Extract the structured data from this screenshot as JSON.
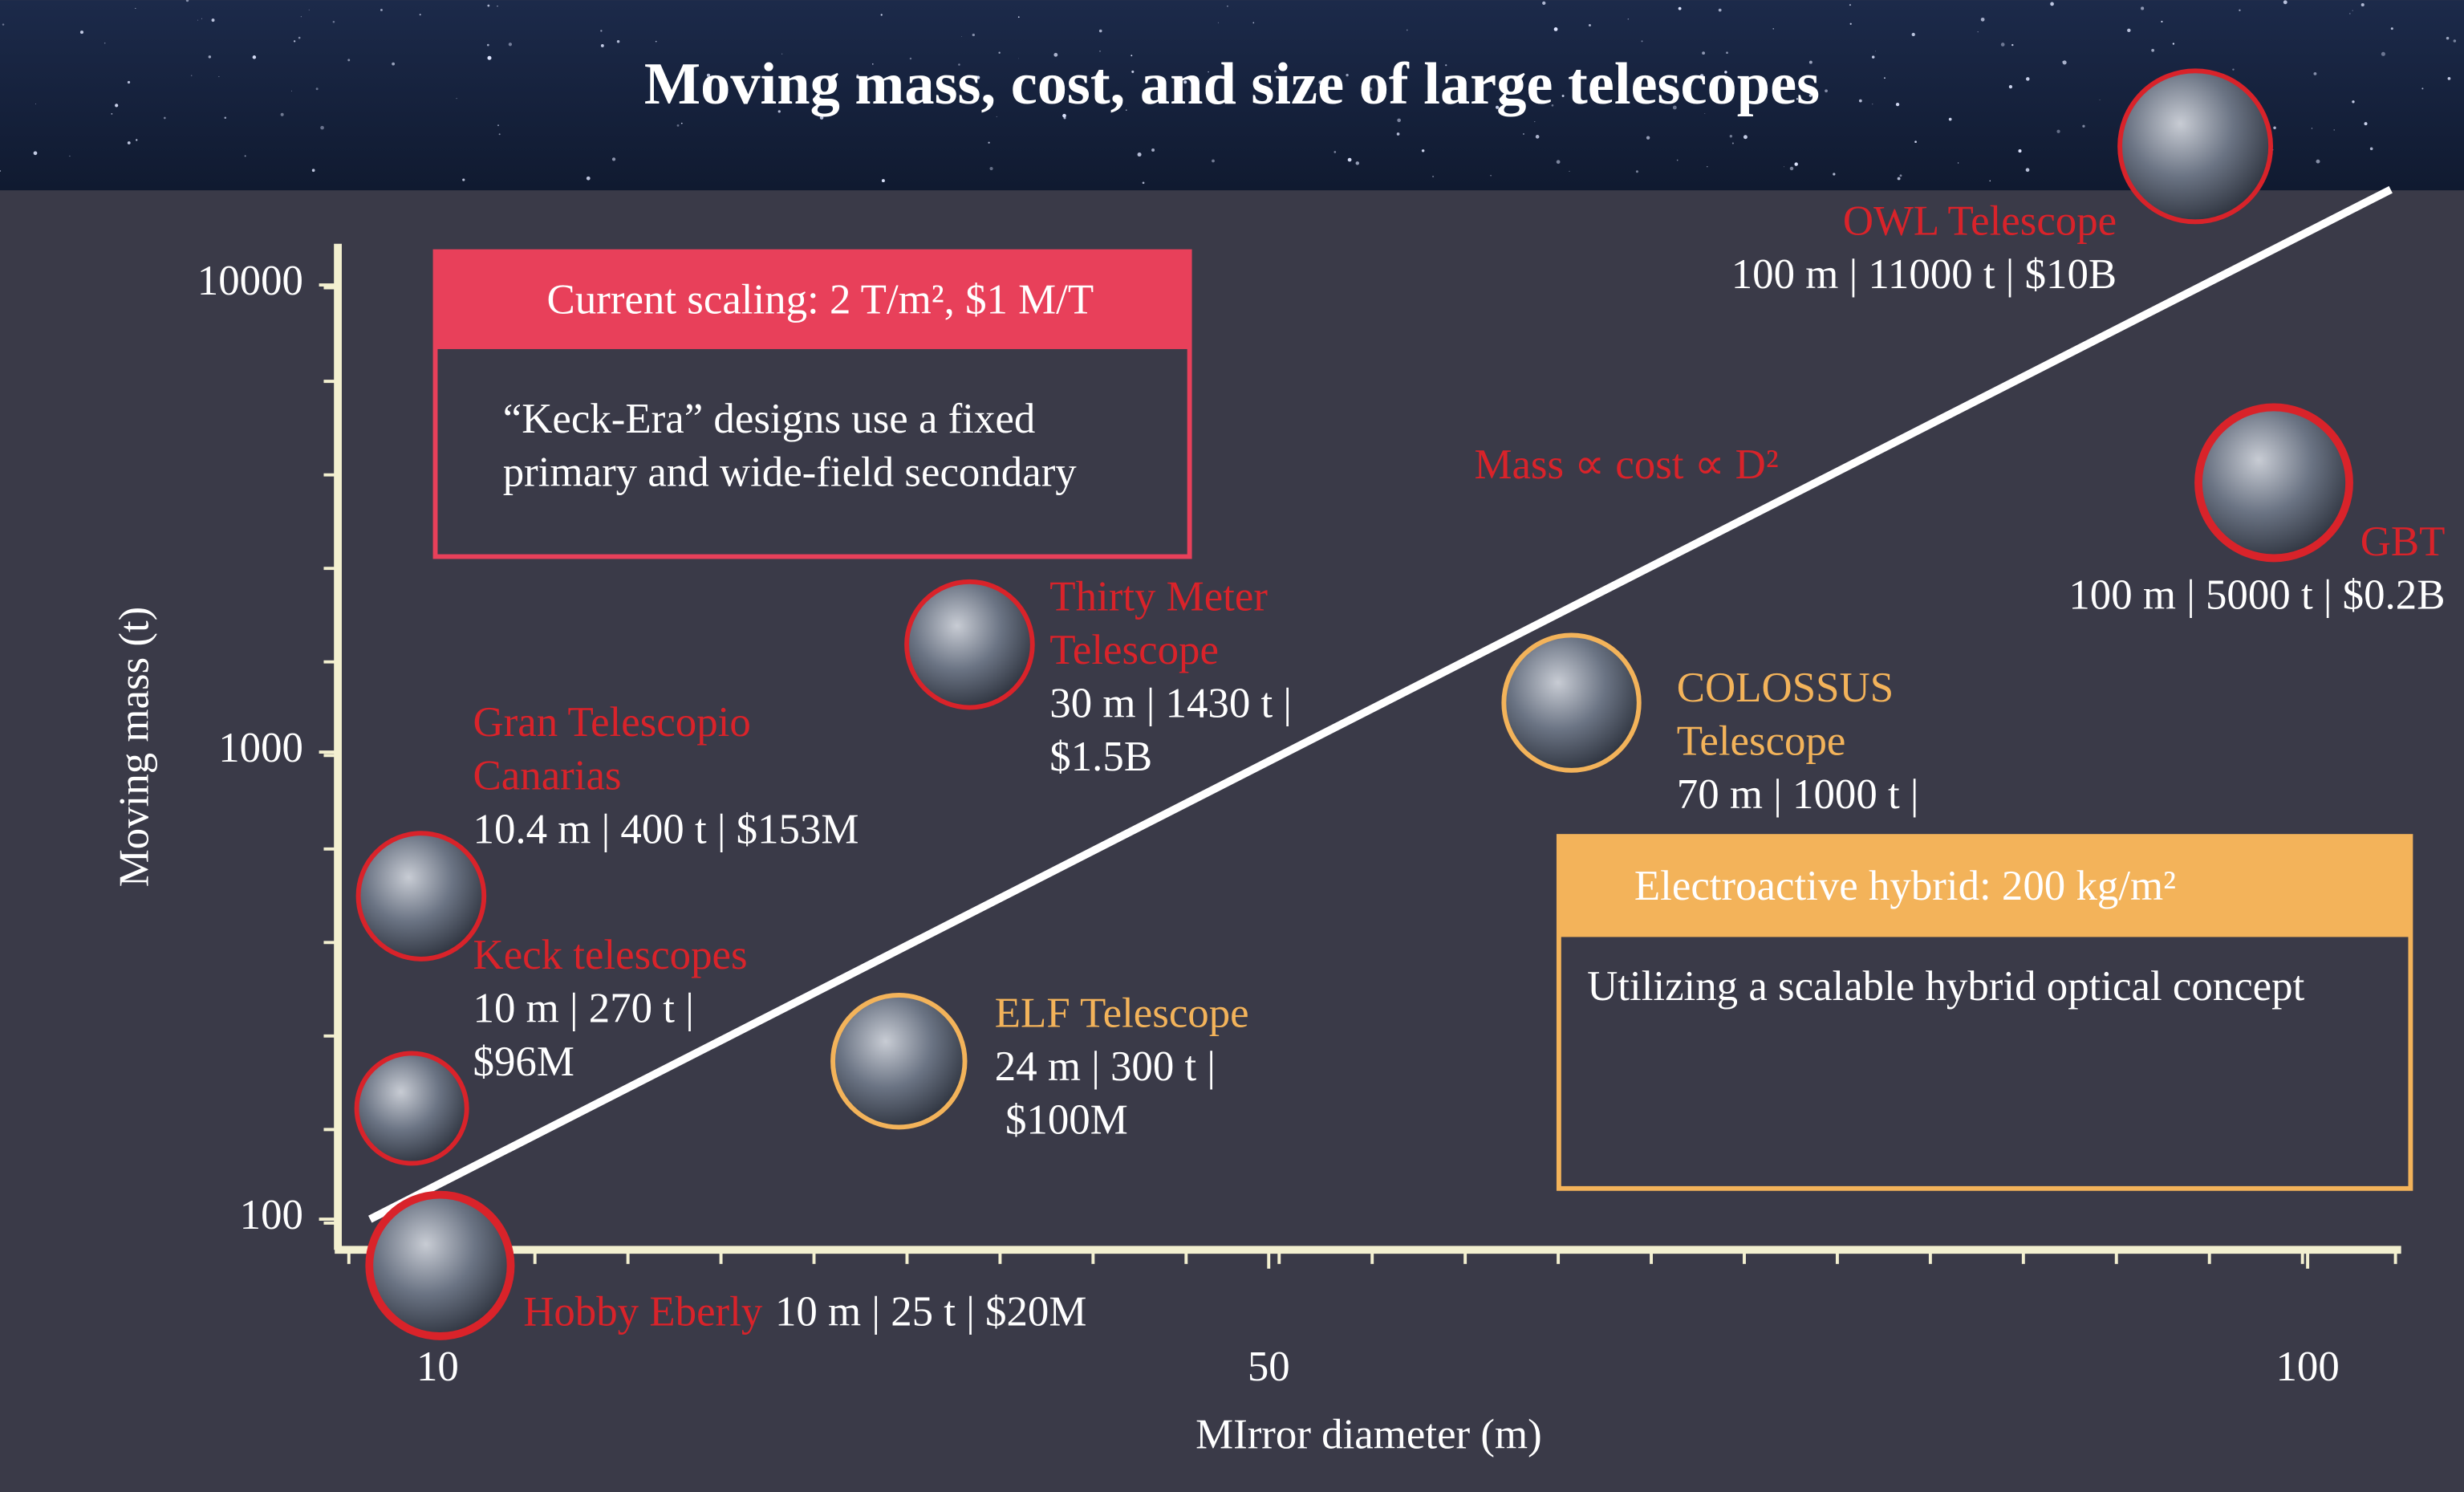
{
  "title": "Moving mass, cost, and size of large telescopes",
  "chart_data": {
    "type": "line",
    "x_label": "MIrror diameter (m)",
    "y_label": "Moving mass (t)",
    "xlim": [
      5.2,
      104.5
    ],
    "xticks": [
      10,
      50,
      100
    ],
    "ylim": [
      86,
      12250
    ],
    "yticks": [
      100,
      1000,
      10000
    ],
    "log_y": true,
    "series": [
      {
        "name": "Mass ∝ cost ∝ D²",
        "color": "#ffffff",
        "x": [
          6.75,
          104
        ],
        "values": [
          100,
          16000
        ]
      }
    ]
  },
  "boxes": [
    {
      "header": "Current scaling: 2 T/m², $1 M/T",
      "body": [
        "“Keck-Era” designs use a fixed",
        "primary and wide-field secondary"
      ],
      "color": "#e8405a"
    },
    {
      "header": "Electroactive hybrid: 200 kg/m²",
      "body": [
        "Utilizing a scalable hybrid optical concept"
      ],
      "color": "#f3b35a"
    }
  ],
  "telescopes": [
    {
      "name": [
        "OWL Telescope"
      ],
      "specs": [
        "100 m | 11000 t | $10B"
      ],
      "color": "#d9232a"
    },
    {
      "name": [
        "GBT"
      ],
      "specs": [
        "100 m | 5000 t | $0.2B"
      ],
      "color": "#d9232a"
    },
    {
      "name": [
        "Thirty Meter",
        "Telescope"
      ],
      "specs": [
        "30 m | 1430 t |",
        "$1.5B"
      ],
      "color": "#d9232a"
    },
    {
      "name": [
        "COLOSSUS",
        "Telescope"
      ],
      "specs": [
        "70 m | 1000 t |"
      ],
      "color": "#f3b35a"
    },
    {
      "name": [
        "Gran Telescopio",
        "Canarias"
      ],
      "specs": [
        "10.4 m | 400 t | $153M"
      ],
      "color": "#d9232a"
    },
    {
      "name": [
        "Keck telescopes"
      ],
      "specs": [
        "10 m | 270 t |",
        "$96M"
      ],
      "color": "#d9232a"
    },
    {
      "name": [
        "ELF Telescope"
      ],
      "specs": [
        "24 m | 300 t |",
        " $100M"
      ],
      "color": "#f3b35a"
    },
    {
      "name": [
        "Hobby Eberly"
      ],
      "specs": [
        "10 m | 25 t | $20M"
      ],
      "color": "#d9232a"
    }
  ]
}
